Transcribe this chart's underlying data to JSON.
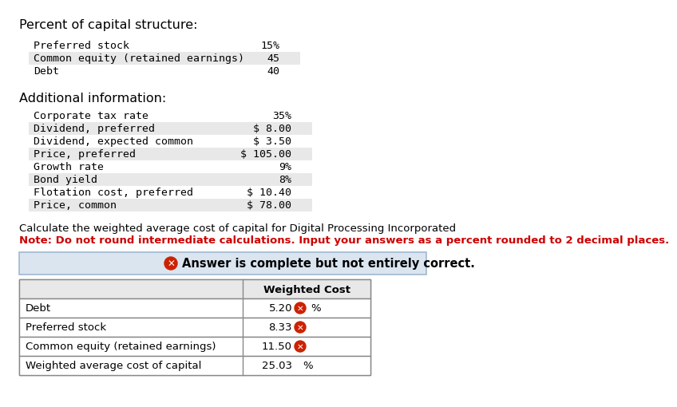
{
  "bg_color": "#ffffff",
  "title_text": "Percent of capital structure:",
  "capital_structure": [
    [
      "Preferred stock",
      "15%"
    ],
    [
      "Common equity (retained earnings)",
      "45"
    ],
    [
      "Debt",
      "40"
    ]
  ],
  "additional_info_title": "Additional information:",
  "additional_info": [
    [
      "Corporate tax rate",
      "35%"
    ],
    [
      "Dividend, preferred",
      "$ 8.00"
    ],
    [
      "Dividend, expected common",
      "$ 3.50"
    ],
    [
      "Price, preferred",
      "$ 105.00"
    ],
    [
      "Growth rate",
      "9%"
    ],
    [
      "Bond yield",
      "8%"
    ],
    [
      "Flotation cost, preferred",
      "$ 10.40"
    ],
    [
      "Price, common",
      "$ 78.00"
    ]
  ],
  "calc_text": "Calculate the weighted average cost of capital for Digital Processing Incorporated",
  "note_text": "Note: Do not round intermediate calculations. Input your answers as a percent rounded to 2 decimal places.",
  "note_color": "#cc0000",
  "answer_banner_bg": "#dae5f0",
  "answer_banner_border": "#a0b8d0",
  "table_header": "Weighted Cost",
  "table_rows": [
    [
      "Debt",
      "5.20",
      true,
      "%"
    ],
    [
      "Preferred stock",
      "8.33",
      true,
      ""
    ],
    [
      "Common equity (retained earnings)",
      "11.50",
      true,
      ""
    ],
    [
      "Weighted average cost of capital",
      "25.03",
      false,
      "%"
    ]
  ],
  "error_icon_color": "#cc2200",
  "table_border_color": "#888888",
  "row_alt_color": "#e8e8e8",
  "font_size": 9.5,
  "header_font_size": 11.5,
  "note_font_size": 9.5,
  "table_font_size": 9.5
}
